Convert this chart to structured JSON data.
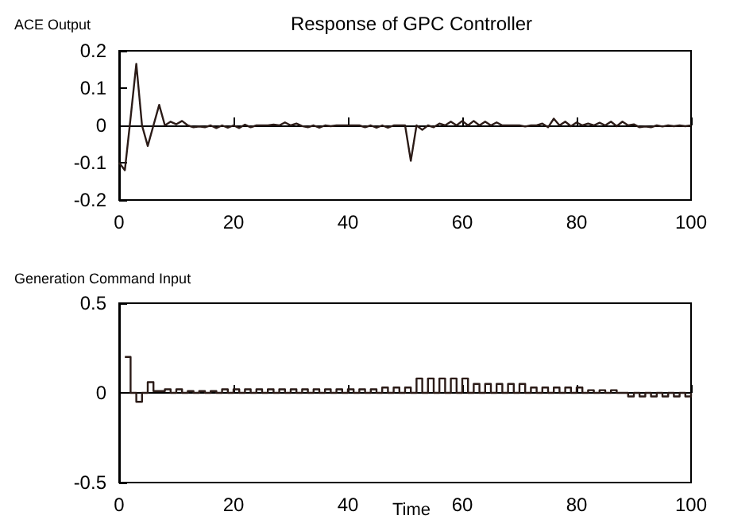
{
  "chart_data": [
    {
      "type": "line",
      "title": "Response of GPC Controller",
      "ylabel": "ACE Output",
      "color": "#2b1b17",
      "x": [
        0,
        1,
        2,
        3,
        4,
        5,
        6,
        7,
        8,
        9,
        10,
        11,
        12,
        13,
        14,
        15,
        16,
        17,
        18,
        19,
        20,
        21,
        22,
        23,
        24,
        25,
        26,
        27,
        28,
        29,
        30,
        31,
        32,
        33,
        34,
        35,
        36,
        37,
        38,
        39,
        40,
        41,
        42,
        43,
        44,
        45,
        46,
        47,
        48,
        49,
        50,
        51,
        52,
        53,
        54,
        55,
        56,
        57,
        58,
        59,
        60,
        61,
        62,
        63,
        64,
        65,
        66,
        67,
        68,
        69,
        70,
        71,
        72,
        73,
        74,
        75,
        76,
        77,
        78,
        79,
        80,
        81,
        82,
        83,
        84,
        85,
        86,
        87,
        88,
        89,
        90,
        91,
        92,
        93,
        94,
        95,
        96,
        97,
        98,
        99,
        100
      ],
      "values": [
        -0.1,
        -0.12,
        0.02,
        0.165,
        0,
        -0.055,
        0,
        0.055,
        0,
        0.01,
        0.003,
        0.012,
        0,
        -0.005,
        -0.003,
        -0.005,
        0,
        -0.007,
        0,
        -0.006,
        0,
        -0.007,
        0.002,
        -0.005,
        0,
        0,
        0,
        0.002,
        0,
        0.008,
        0,
        0.005,
        -0.002,
        -0.005,
        0,
        -0.006,
        0,
        -0.002,
        0,
        0,
        0,
        0,
        0,
        -0.005,
        0,
        -0.006,
        0,
        -0.006,
        0,
        0,
        0,
        -0.095,
        0,
        -0.012,
        0,
        -0.005,
        0.005,
        0,
        0.01,
        0,
        0.012,
        0,
        0.012,
        0,
        0.01,
        0,
        0.008,
        0,
        0,
        0,
        0,
        -0.003,
        0,
        0,
        0.005,
        -0.005,
        0.018,
        0,
        0.01,
        -0.002,
        0.008,
        0,
        0.005,
        0,
        0.007,
        0,
        0.01,
        -0.002,
        0.01,
        0,
        0.003,
        -0.005,
        -0.003,
        -0.005,
        0,
        -0.003,
        0,
        -0.002,
        0,
        -0.002,
        0
      ],
      "xlim": [
        0,
        100
      ],
      "xticks": [
        0,
        20,
        40,
        60,
        80,
        100
      ],
      "ylim": [
        -0.2,
        0.2
      ],
      "yticks": [
        -0.2,
        -0.1,
        0,
        0.1,
        0.2
      ]
    },
    {
      "type": "step",
      "ylabel": "Generation Command Input",
      "xlabel": "Time",
      "color": "#2b1b17",
      "x": [
        1,
        2,
        3,
        4,
        5,
        6,
        7,
        8,
        9,
        10,
        11,
        12,
        13,
        14,
        15,
        16,
        17,
        18,
        19,
        20,
        21,
        22,
        23,
        24,
        25,
        26,
        27,
        28,
        29,
        30,
        31,
        32,
        33,
        34,
        35,
        36,
        37,
        38,
        39,
        40,
        41,
        42,
        43,
        44,
        45,
        46,
        47,
        48,
        49,
        50,
        51,
        52,
        53,
        54,
        55,
        56,
        57,
        58,
        59,
        60,
        61,
        62,
        63,
        64,
        65,
        66,
        67,
        68,
        69,
        70,
        71,
        72,
        73,
        74,
        75,
        76,
        77,
        78,
        79,
        80,
        81,
        82,
        83,
        84,
        85,
        86,
        87,
        88,
        89,
        90,
        91,
        92,
        93,
        94,
        95,
        96,
        97,
        98,
        99,
        100
      ],
      "values": [
        0.2,
        0,
        -0.05,
        0,
        0.06,
        0.01,
        0.01,
        0.02,
        0,
        0.02,
        0,
        0.01,
        0,
        0.01,
        0,
        0.01,
        0,
        0.02,
        0,
        0.02,
        0,
        0.02,
        0,
        0.02,
        0,
        0.02,
        0,
        0.02,
        0,
        0.02,
        0,
        0.02,
        0,
        0.02,
        0,
        0.02,
        0,
        0.02,
        0,
        0.02,
        0,
        0.02,
        0,
        0.02,
        0,
        0.03,
        0,
        0.03,
        0,
        0.03,
        0,
        0.08,
        0,
        0.08,
        0,
        0.08,
        0,
        0.08,
        0,
        0.08,
        0,
        0.05,
        0,
        0.05,
        0,
        0.05,
        0,
        0.05,
        0,
        0.05,
        0,
        0.03,
        0,
        0.03,
        0,
        0.03,
        0,
        0.03,
        0,
        0.03,
        0,
        0.015,
        0,
        0.015,
        0,
        0.015,
        0,
        0,
        -0.02,
        0,
        -0.02,
        0,
        -0.02,
        0,
        -0.02,
        0,
        -0.02,
        0,
        -0.02,
        0
      ],
      "xlim": [
        0,
        100
      ],
      "xticks": [
        0,
        20,
        40,
        60,
        80,
        100
      ],
      "ylim": [
        -0.5,
        0.5
      ],
      "yticks": [
        -0.5,
        0,
        0.5
      ]
    }
  ]
}
